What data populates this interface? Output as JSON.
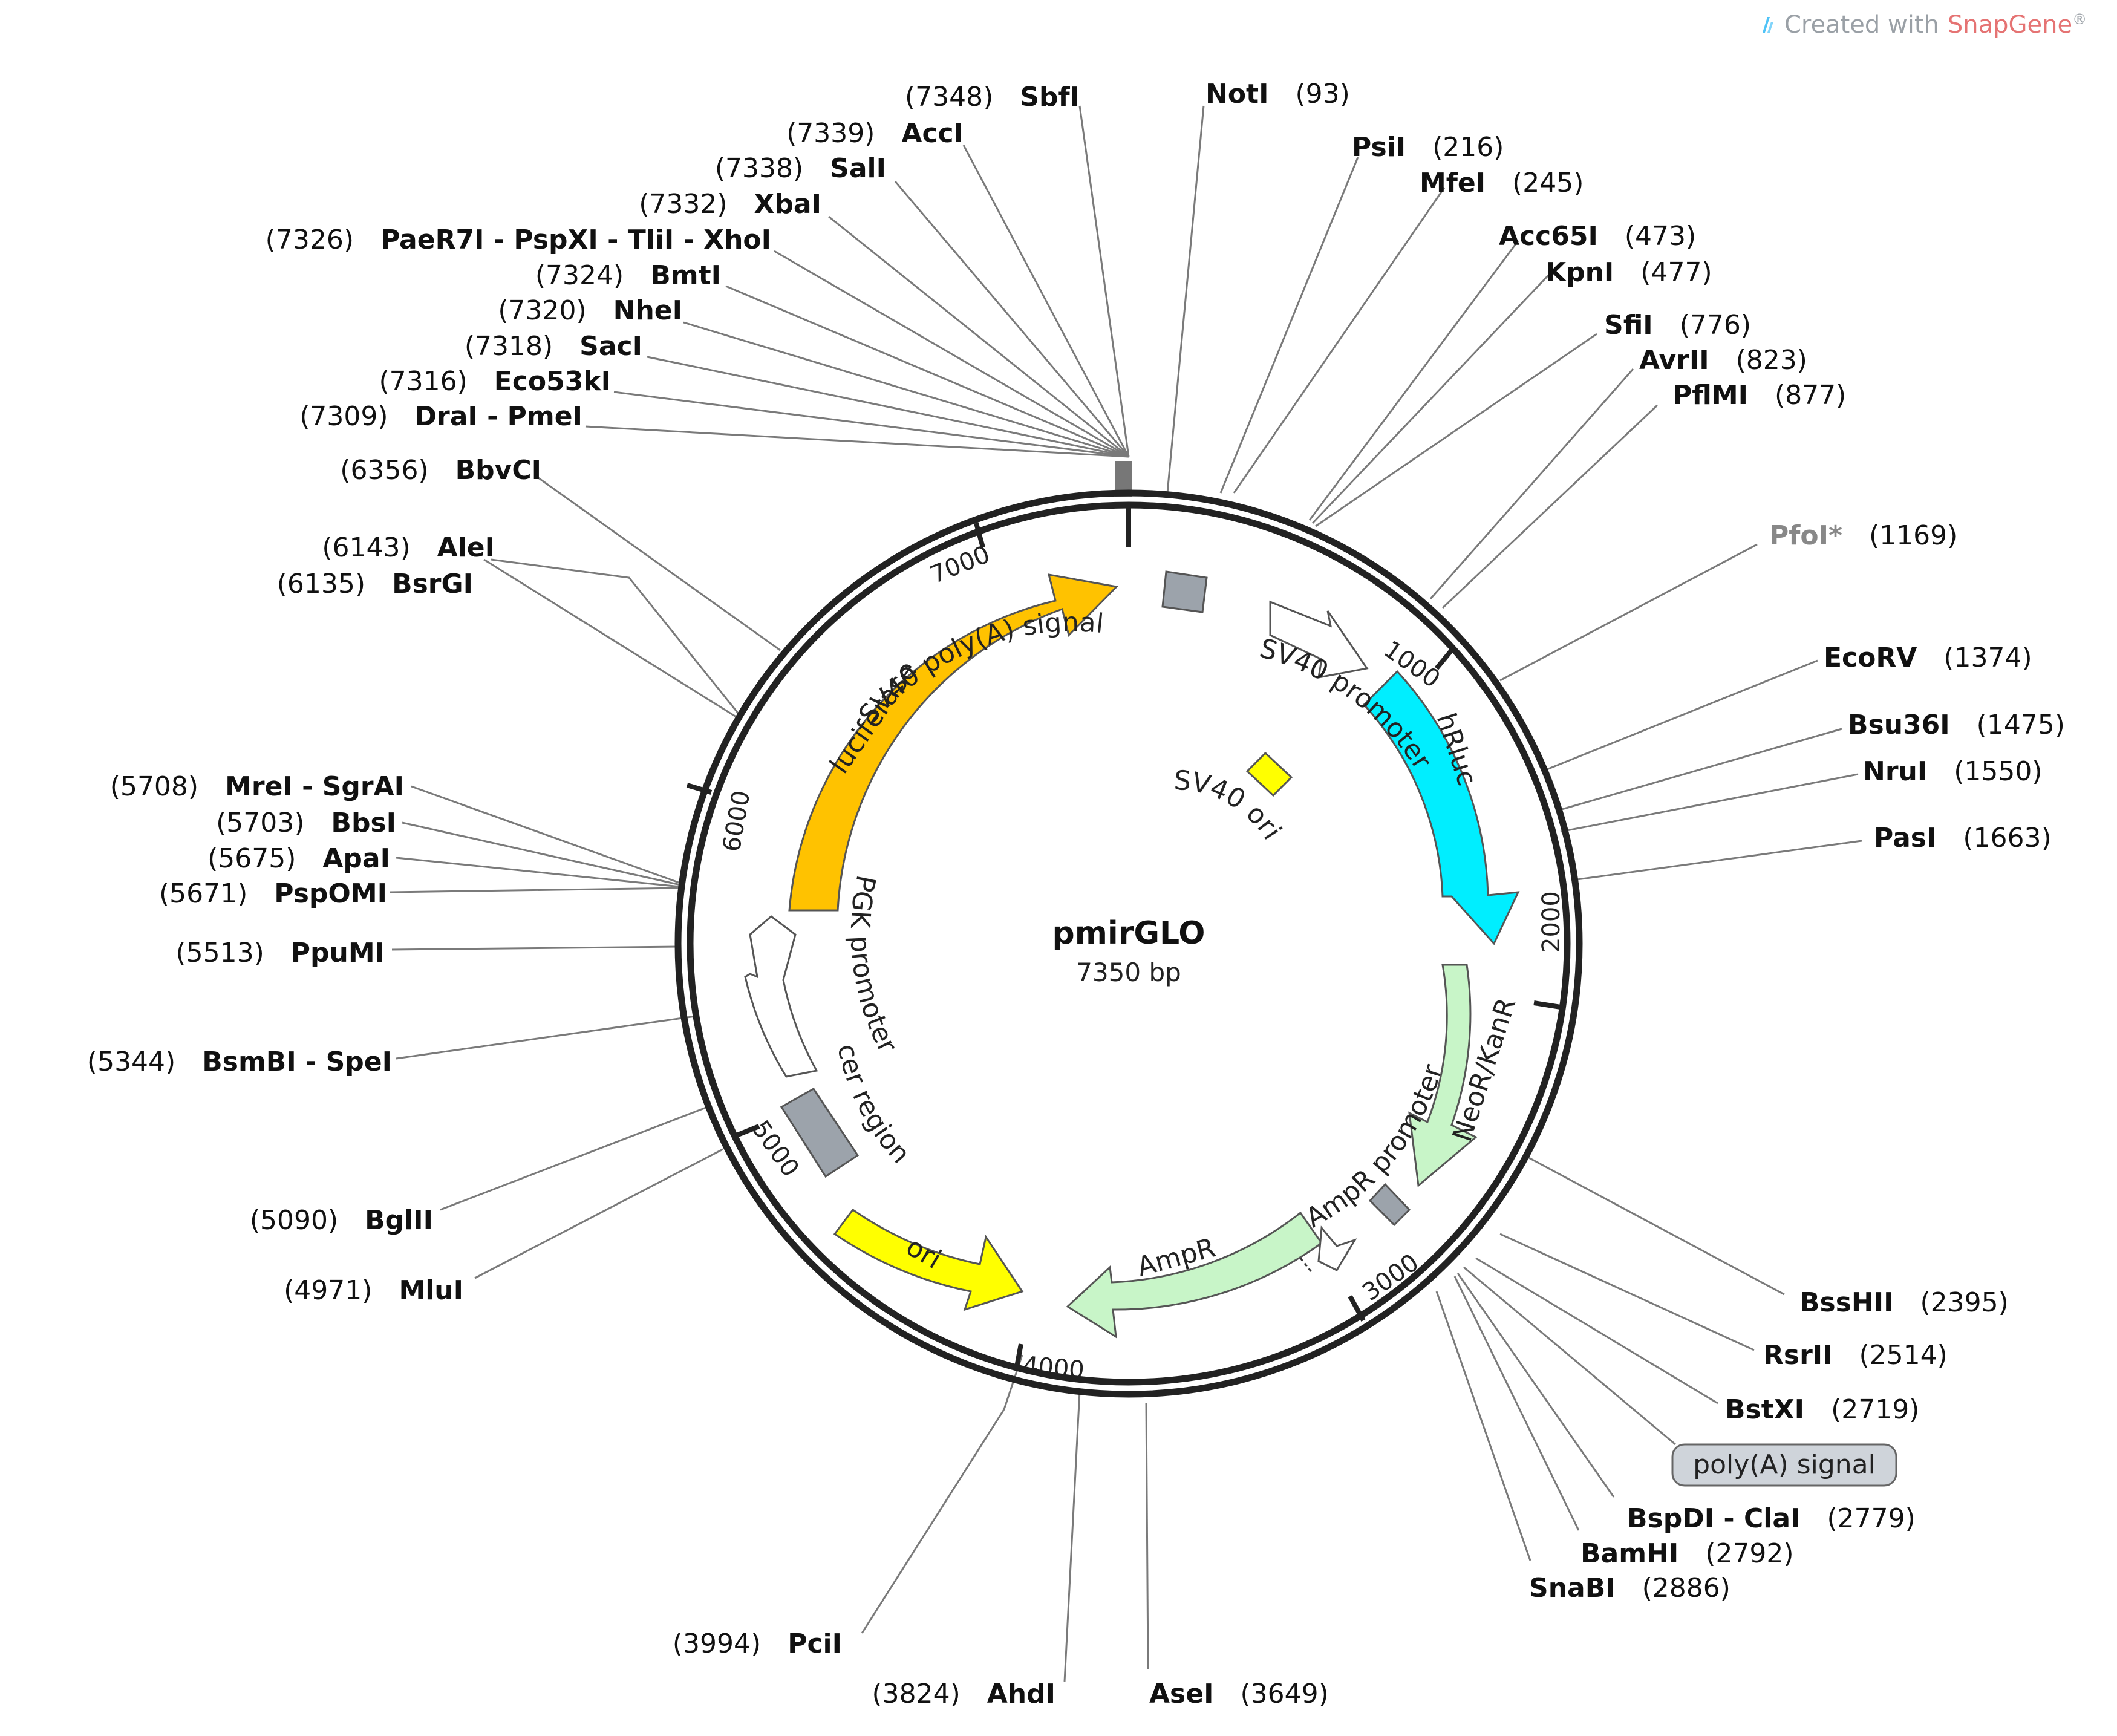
{
  "credit": {
    "prefix": "Created with",
    "brand": "SnapGene",
    "mark": "®"
  },
  "plasmid": {
    "name": "pmirGLO",
    "length_label": "7350 bp",
    "length": 7350
  },
  "ticks": [
    "1000",
    "2000",
    "3000",
    "4000",
    "5000",
    "6000",
    "7000"
  ],
  "colors": {
    "luciferase": "#ffc200",
    "hRluc": "#00eeff",
    "NeoR": "#c8f5c8",
    "AmpR": "#c8f5c8",
    "ori": "#ffff00",
    "SV40ori": "#ffff00",
    "grey_box": "#9ca3ab",
    "promoter": "#ffffff",
    "backbone": "#222222",
    "leader": "#7a7a7a",
    "faded_site": "#888888"
  },
  "features": [
    {
      "name": "luciferase",
      "label": "luciferase"
    },
    {
      "name": "hRluc",
      "label": "hRluc"
    },
    {
      "name": "NeoR",
      "label": "NeoR/KanR"
    },
    {
      "name": "AmpR",
      "label": "AmpR"
    },
    {
      "name": "ori",
      "label": "ori"
    },
    {
      "name": "SV40-polyA",
      "label": "SV40 poly(A) signal"
    },
    {
      "name": "SV40-promoter",
      "label": "SV40 promoter"
    },
    {
      "name": "SV40-ori",
      "label": "SV40 ori"
    },
    {
      "name": "PGK-promoter",
      "label": "PGK promoter"
    },
    {
      "name": "cer-region",
      "label": "cer region"
    },
    {
      "name": "AmpR-promoter",
      "label": "AmpR promoter"
    },
    {
      "name": "polyA-signal",
      "label": "poly(A) signal"
    }
  ],
  "sites": [
    {
      "id": "site-sbfi",
      "label": "SbfI",
      "pos": "7348"
    },
    {
      "id": "site-acci",
      "label": "AccI",
      "pos": "7339"
    },
    {
      "id": "site-sali",
      "label": "SalI",
      "pos": "7338"
    },
    {
      "id": "site-xbai",
      "label": "XbaI",
      "pos": "7332"
    },
    {
      "id": "site-xhoi-group",
      "label": "PaeR7I - PspXI - TliI - XhoI",
      "pos": "7326"
    },
    {
      "id": "site-bmti",
      "label": "BmtI",
      "pos": "7324"
    },
    {
      "id": "site-nhei",
      "label": "NheI",
      "pos": "7320"
    },
    {
      "id": "site-saci",
      "label": "SacI",
      "pos": "7318"
    },
    {
      "id": "site-eco53ki",
      "label": "Eco53kI",
      "pos": "7316"
    },
    {
      "id": "site-dra-pme",
      "label": "DraI - PmeI",
      "pos": "7309"
    },
    {
      "id": "site-bbvci",
      "label": "BbvCI",
      "pos": "6356"
    },
    {
      "id": "site-alei",
      "label": "AleI",
      "pos": "6143"
    },
    {
      "id": "site-bsrgi",
      "label": "BsrGI",
      "pos": "6135"
    },
    {
      "id": "site-mrei-sgrai",
      "label": "MreI - SgrAI",
      "pos": "5708"
    },
    {
      "id": "site-bbsi",
      "label": "BbsI",
      "pos": "5703"
    },
    {
      "id": "site-apai",
      "label": "ApaI",
      "pos": "5675"
    },
    {
      "id": "site-pspomi",
      "label": "PspOMI",
      "pos": "5671"
    },
    {
      "id": "site-ppumi",
      "label": "PpuMI",
      "pos": "5513"
    },
    {
      "id": "site-bsmbi-spei",
      "label": "BsmBI - SpeI",
      "pos": "5344"
    },
    {
      "id": "site-bglii",
      "label": "BglII",
      "pos": "5090"
    },
    {
      "id": "site-mlui",
      "label": "MluI",
      "pos": "4971"
    },
    {
      "id": "site-pcii",
      "label": "PciI",
      "pos": "3994"
    },
    {
      "id": "site-ahdi",
      "label": "AhdI",
      "pos": "3824"
    },
    {
      "id": "site-asei",
      "label": "AseI",
      "pos": "3649"
    },
    {
      "id": "site-snabi",
      "label": "SnaBI",
      "pos": "2886"
    },
    {
      "id": "site-bamhi",
      "label": "BamHI",
      "pos": "2792"
    },
    {
      "id": "site-bspdi-clai",
      "label": "BspDI - ClaI",
      "pos": "2779"
    },
    {
      "id": "site-bstxi",
      "label": "BstXI",
      "pos": "2719"
    },
    {
      "id": "site-rsrii",
      "label": "RsrII",
      "pos": "2514"
    },
    {
      "id": "site-bsshii",
      "label": "BssHII",
      "pos": "2395"
    },
    {
      "id": "site-pasi",
      "label": "PasI",
      "pos": "1663"
    },
    {
      "id": "site-nrui",
      "label": "NruI",
      "pos": "1550"
    },
    {
      "id": "site-bsu36i",
      "label": "Bsu36I",
      "pos": "1475"
    },
    {
      "id": "site-ecorv",
      "label": "EcoRV",
      "pos": "1374"
    },
    {
      "id": "site-pfoi",
      "label": "PfoI*",
      "pos": "1169"
    },
    {
      "id": "site-pflmi",
      "label": "PflMI",
      "pos": "877"
    },
    {
      "id": "site-avrii",
      "label": "AvrII",
      "pos": "823"
    },
    {
      "id": "site-sfii",
      "label": "SfiI",
      "pos": "776"
    },
    {
      "id": "site-kpni",
      "label": "KpnI",
      "pos": "477"
    },
    {
      "id": "site-acc65i",
      "label": "Acc65I",
      "pos": "473"
    },
    {
      "id": "site-mfei",
      "label": "MfeI",
      "pos": "245"
    },
    {
      "id": "site-psii",
      "label": "PsiI",
      "pos": "216"
    },
    {
      "id": "site-noti",
      "label": "NotI",
      "pos": "93"
    }
  ]
}
